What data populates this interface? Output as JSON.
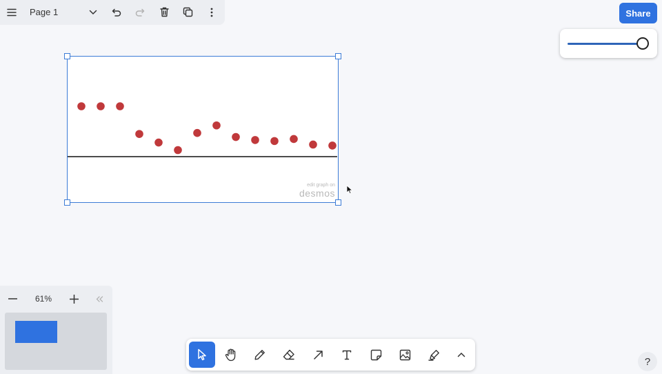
{
  "header": {
    "page_title": "Page 1",
    "icons": [
      "menu-icon",
      "chevron-down-icon",
      "undo-icon",
      "redo-icon",
      "trash-icon",
      "duplicate-icon",
      "more-vertical-icon"
    ]
  },
  "share_label": "Share",
  "slider": {
    "value": 1.0
  },
  "graph": {
    "watermark_small": "edit graph on",
    "watermark_big": "desmos",
    "points": [
      {
        "x": 0,
        "y": 1.0
      },
      {
        "x": 1,
        "y": 1.0
      },
      {
        "x": 2,
        "y": 1.0
      },
      {
        "x": 3,
        "y": 0.45
      },
      {
        "x": 4,
        "y": 0.28
      },
      {
        "x": 5,
        "y": 0.13
      },
      {
        "x": 6,
        "y": 0.47
      },
      {
        "x": 7,
        "y": 0.62
      },
      {
        "x": 8,
        "y": 0.39
      },
      {
        "x": 9,
        "y": 0.33
      },
      {
        "x": 10,
        "y": 0.31
      },
      {
        "x": 11,
        "y": 0.35
      },
      {
        "x": 12,
        "y": 0.24
      },
      {
        "x": 13,
        "y": 0.22
      }
    ],
    "baseline_y": 0,
    "point_color": "#c0393b"
  },
  "zoom": {
    "value": "61%"
  },
  "toolbar": {
    "tools": [
      "select-icon",
      "hand-icon",
      "pencil-icon",
      "eraser-icon",
      "arrow-icon",
      "text-icon",
      "sticky-note-icon",
      "image-icon",
      "highlighter-icon",
      "chevron-up-icon"
    ],
    "active": "select-icon"
  },
  "help_label": "?",
  "colors": {
    "accent": "#2f72e0",
    "selection": "#3b7bd6"
  }
}
